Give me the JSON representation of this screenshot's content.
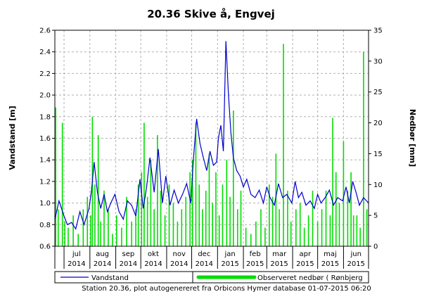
{
  "chart_data": {
    "type": "line",
    "title": "20.36 Skive å, Engvej",
    "ylabel_left": "Vandstand [m]",
    "ylabel_right": "Nedbør [mm]",
    "ylim_left": [
      0.6,
      2.6
    ],
    "ylim_right": [
      0,
      35
    ],
    "yticks_left": [
      "0.6",
      "0.8",
      "1.0",
      "1.2",
      "1.4",
      "1.6",
      "1.8",
      "2.0",
      "2.2",
      "2.4",
      "2.6"
    ],
    "yticks_right": [
      "0",
      "5",
      "10",
      "15",
      "20",
      "25",
      "30",
      "35"
    ],
    "xlim": [
      "2014-06-20",
      "2015-07-01"
    ],
    "x_month_labels": [
      {
        "month": "jul",
        "year": "2014"
      },
      {
        "month": "aug",
        "year": "2014"
      },
      {
        "month": "sep",
        "year": "2014"
      },
      {
        "month": "okt",
        "year": "2014"
      },
      {
        "month": "nov",
        "year": "2014"
      },
      {
        "month": "dec",
        "year": "2014"
      },
      {
        "month": "jan",
        "year": "2015"
      },
      {
        "month": "feb",
        "year": "2015"
      },
      {
        "month": "mar",
        "year": "2015"
      },
      {
        "month": "apr",
        "year": "2015"
      },
      {
        "month": "maj",
        "year": "2015"
      },
      {
        "month": "jun",
        "year": "2015"
      }
    ],
    "grid": true,
    "legend": "bottom",
    "series": [
      {
        "name": "Vandstand",
        "axis": "left",
        "type": "line",
        "color": "#0000cc",
        "x": [
          "2014-06-20",
          "2014-06-25",
          "2014-07-01",
          "2014-07-05",
          "2014-07-10",
          "2014-07-15",
          "2014-07-20",
          "2014-07-25",
          "2014-07-31",
          "2014-08-03",
          "2014-08-06",
          "2014-08-10",
          "2014-08-14",
          "2014-08-18",
          "2014-08-22",
          "2014-08-26",
          "2014-08-31",
          "2014-09-05",
          "2014-09-10",
          "2014-09-15",
          "2014-09-20",
          "2014-09-25",
          "2014-09-30",
          "2014-10-04",
          "2014-10-08",
          "2014-10-12",
          "2014-10-17",
          "2014-10-22",
          "2014-10-27",
          "2014-10-31",
          "2014-11-05",
          "2014-11-10",
          "2014-11-15",
          "2014-11-20",
          "2014-11-25",
          "2014-11-30",
          "2014-12-03",
          "2014-12-07",
          "2014-12-11",
          "2014-12-15",
          "2014-12-19",
          "2014-12-23",
          "2014-12-27",
          "2014-12-31",
          "2015-01-02",
          "2015-01-05",
          "2015-01-08",
          "2015-01-11",
          "2015-01-14",
          "2015-01-17",
          "2015-01-20",
          "2015-01-24",
          "2015-01-28",
          "2015-02-01",
          "2015-02-05",
          "2015-02-10",
          "2015-02-15",
          "2015-02-20",
          "2015-02-25",
          "2015-03-01",
          "2015-03-05",
          "2015-03-10",
          "2015-03-15",
          "2015-03-20",
          "2015-03-25",
          "2015-03-31",
          "2015-04-04",
          "2015-04-08",
          "2015-04-12",
          "2015-04-17",
          "2015-04-22",
          "2015-04-27",
          "2015-05-01",
          "2015-05-05",
          "2015-05-10",
          "2015-05-15",
          "2015-05-20",
          "2015-05-25",
          "2015-05-31",
          "2015-06-04",
          "2015-06-08",
          "2015-06-12",
          "2015-06-16",
          "2015-06-20",
          "2015-06-25",
          "2015-07-01"
        ],
        "values": [
          0.85,
          1.02,
          0.88,
          0.8,
          0.82,
          0.76,
          0.92,
          0.8,
          0.95,
          1.12,
          1.38,
          1.1,
          0.95,
          1.08,
          0.92,
          1.0,
          1.08,
          0.92,
          0.85,
          1.02,
          0.98,
          0.88,
          1.22,
          0.95,
          1.15,
          1.42,
          1.1,
          1.5,
          1.0,
          1.25,
          0.98,
          1.12,
          1.0,
          1.08,
          1.18,
          1.0,
          1.4,
          1.78,
          1.55,
          1.42,
          1.3,
          1.48,
          1.35,
          1.38,
          1.6,
          1.72,
          1.48,
          2.5,
          2.02,
          1.65,
          1.42,
          1.3,
          1.25,
          1.15,
          1.22,
          1.08,
          1.05,
          1.12,
          1.0,
          1.15,
          1.05,
          0.98,
          1.18,
          1.05,
          1.08,
          1.0,
          1.2,
          1.05,
          1.1,
          0.98,
          1.02,
          0.95,
          1.08,
          1.0,
          1.05,
          1.12,
          0.98,
          1.05,
          1.02,
          1.15,
          1.0,
          1.2,
          1.1,
          0.98,
          1.05,
          1.0
        ]
      },
      {
        "name": "Observeret nedbør ( Rønbjerg",
        "axis": "right",
        "type": "bar",
        "color": "#00dd00",
        "x": [
          "2014-06-21",
          "2014-06-24",
          "2014-06-29",
          "2014-07-02",
          "2014-07-06",
          "2014-07-12",
          "2014-07-18",
          "2014-07-24",
          "2014-07-29",
          "2014-08-02",
          "2014-08-04",
          "2014-08-07",
          "2014-08-11",
          "2014-08-14",
          "2014-08-18",
          "2014-08-23",
          "2014-08-28",
          "2014-09-02",
          "2014-09-08",
          "2014-09-14",
          "2014-09-20",
          "2014-09-25",
          "2014-09-28",
          "2014-10-02",
          "2014-10-05",
          "2014-10-09",
          "2014-10-13",
          "2014-10-17",
          "2014-10-21",
          "2014-10-25",
          "2014-10-30",
          "2014-11-04",
          "2014-11-09",
          "2014-11-14",
          "2014-11-19",
          "2014-11-24",
          "2014-11-29",
          "2014-12-02",
          "2014-12-06",
          "2014-12-10",
          "2014-12-14",
          "2014-12-18",
          "2014-12-22",
          "2014-12-26",
          "2014-12-30",
          "2015-01-03",
          "2015-01-07",
          "2015-01-12",
          "2015-01-16",
          "2015-01-20",
          "2015-01-25",
          "2015-01-29",
          "2015-02-04",
          "2015-02-10",
          "2015-02-16",
          "2015-02-22",
          "2015-02-27",
          "2015-03-04",
          "2015-03-08",
          "2015-03-12",
          "2015-03-16",
          "2015-03-21",
          "2015-03-26",
          "2015-03-30",
          "2015-04-05",
          "2015-04-10",
          "2015-04-15",
          "2015-04-20",
          "2015-04-25",
          "2015-05-01",
          "2015-05-06",
          "2015-05-11",
          "2015-05-16",
          "2015-05-19",
          "2015-05-23",
          "2015-05-27",
          "2015-06-01",
          "2015-06-06",
          "2015-06-10",
          "2015-06-13",
          "2015-06-17",
          "2015-06-21",
          "2015-06-25",
          "2015-06-29"
        ],
        "values": [
          22.5,
          6,
          20,
          4,
          3,
          5,
          2,
          6,
          8,
          5,
          21,
          10,
          18,
          4,
          9,
          6,
          2,
          5,
          3,
          8,
          4,
          6,
          10,
          12,
          20,
          8,
          14,
          6,
          18,
          9,
          5,
          10,
          7,
          4,
          6,
          8,
          12,
          14,
          20,
          10,
          6,
          9,
          15,
          7,
          12,
          5,
          10,
          14,
          8,
          22,
          6,
          9,
          3,
          2,
          4,
          6,
          3,
          10,
          8,
          15,
          6,
          32.8,
          9,
          4,
          6,
          7,
          3,
          5,
          9,
          4,
          6,
          9,
          5,
          20.8,
          12,
          7,
          17,
          9,
          12,
          5,
          5,
          3,
          31.5,
          6
        ]
      }
    ],
    "legend_entries": [
      "Vandstand",
      "Observeret nedbør ( Rønbjerg"
    ],
    "footer": "Station 20.36, plot autogenereret fra Orbicons Hymer database 01-07-2015 06:20"
  }
}
